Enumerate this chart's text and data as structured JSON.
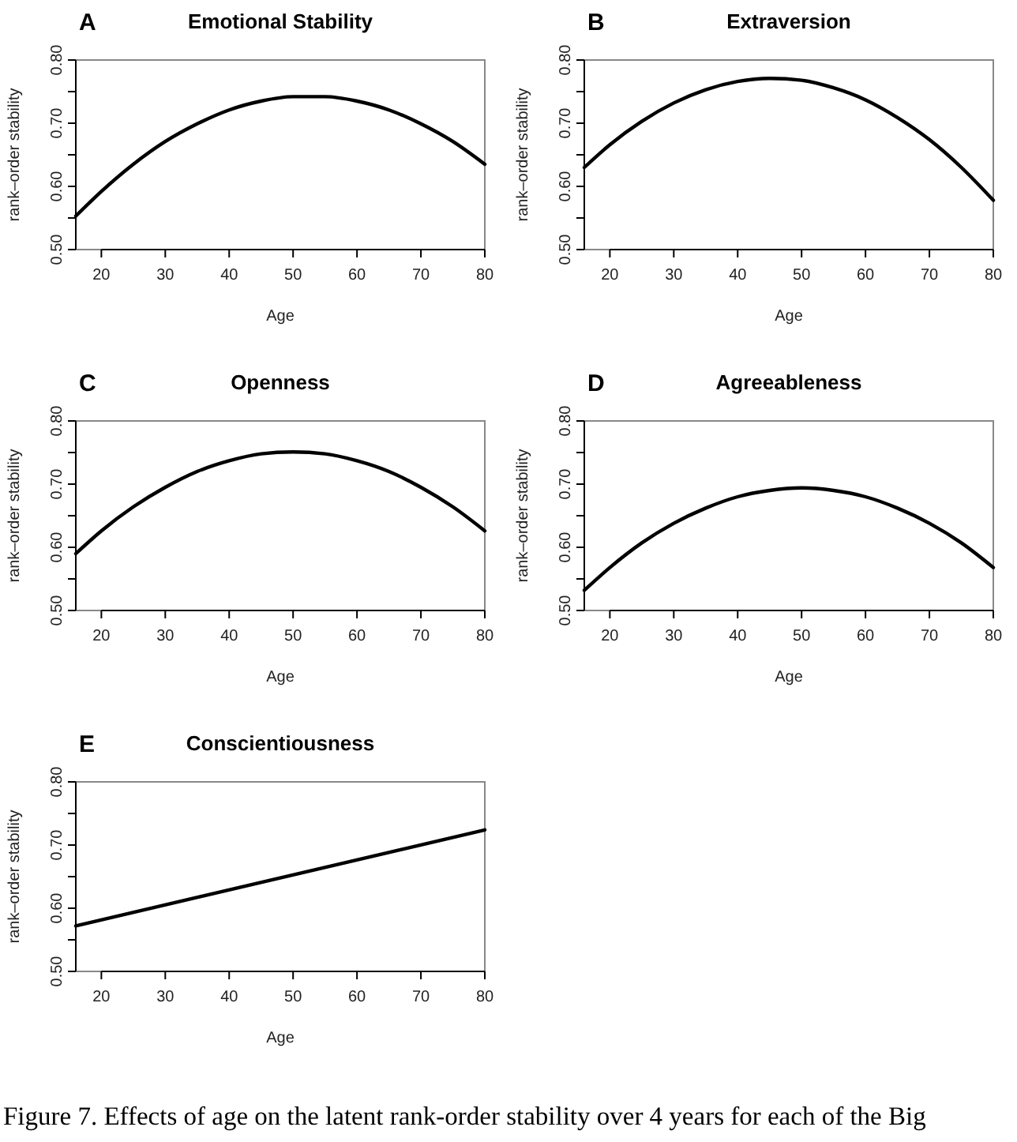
{
  "chart_data": [
    {
      "type": "line",
      "title": "Emotional Stability",
      "xlabel": "Age",
      "ylabel": "rank–order stability",
      "annotations": [
        "A"
      ],
      "x": [
        16,
        20,
        25,
        30,
        35,
        40,
        45,
        50,
        55,
        60,
        65,
        70,
        75,
        80
      ],
      "xlim": [
        16,
        80
      ],
      "xticks": [
        20,
        30,
        40,
        50,
        60,
        70,
        80
      ],
      "ylim": [
        0.5,
        0.8
      ],
      "yticks": [
        {
          "value": 0.5,
          "label": "0.50"
        },
        {
          "value": 0.55,
          "label": null
        },
        {
          "value": 0.6,
          "label": "0.60"
        },
        {
          "value": 0.65,
          "label": null
        },
        {
          "value": 0.7,
          "label": "0.70"
        },
        {
          "value": 0.75,
          "label": null
        },
        {
          "value": 0.8,
          "label": "0.80"
        }
      ],
      "series": [
        {
          "color": "#000000",
          "values": [
            0.553,
            0.592,
            0.635,
            0.671,
            0.699,
            0.721,
            0.735,
            0.742,
            0.742,
            0.735,
            0.721,
            0.699,
            0.671,
            0.635
          ]
        }
      ]
    },
    {
      "type": "line",
      "title": "Extraversion",
      "xlabel": "Age",
      "ylabel": "rank–order stability",
      "annotations": [
        "B"
      ],
      "x": [
        16,
        20,
        25,
        30,
        35,
        40,
        45,
        50,
        55,
        60,
        65,
        70,
        75,
        80
      ],
      "xlim": [
        16,
        80
      ],
      "xticks": [
        20,
        30,
        40,
        50,
        60,
        70,
        80
      ],
      "ylim": [
        0.5,
        0.8
      ],
      "yticks": [
        {
          "value": 0.5,
          "label": "0.50"
        },
        {
          "value": 0.55,
          "label": null
        },
        {
          "value": 0.6,
          "label": "0.60"
        },
        {
          "value": 0.65,
          "label": null
        },
        {
          "value": 0.7,
          "label": "0.70"
        },
        {
          "value": 0.75,
          "label": null
        },
        {
          "value": 0.8,
          "label": "0.80"
        }
      ],
      "series": [
        {
          "color": "#000000",
          "values": [
            0.63,
            0.666,
            0.703,
            0.732,
            0.753,
            0.766,
            0.771,
            0.768,
            0.756,
            0.737,
            0.709,
            0.674,
            0.63,
            0.578
          ]
        }
      ]
    },
    {
      "type": "line",
      "title": "Openness",
      "xlabel": "Age",
      "ylabel": "rank–order stability",
      "annotations": [
        "C"
      ],
      "x": [
        16,
        20,
        25,
        30,
        35,
        40,
        45,
        50,
        55,
        60,
        65,
        70,
        75,
        80
      ],
      "xlim": [
        16,
        80
      ],
      "xticks": [
        20,
        30,
        40,
        50,
        60,
        70,
        80
      ],
      "ylim": [
        0.5,
        0.8
      ],
      "yticks": [
        {
          "value": 0.5,
          "label": "0.50"
        },
        {
          "value": 0.55,
          "label": null
        },
        {
          "value": 0.6,
          "label": "0.60"
        },
        {
          "value": 0.65,
          "label": null
        },
        {
          "value": 0.7,
          "label": "0.70"
        },
        {
          "value": 0.75,
          "label": null
        },
        {
          "value": 0.8,
          "label": "0.80"
        }
      ],
      "series": [
        {
          "color": "#000000",
          "values": [
            0.59,
            0.626,
            0.664,
            0.695,
            0.72,
            0.737,
            0.748,
            0.751,
            0.748,
            0.737,
            0.72,
            0.695,
            0.664,
            0.626
          ]
        }
      ]
    },
    {
      "type": "line",
      "title": "Agreeableness",
      "xlabel": "Age",
      "ylabel": "rank–order stability",
      "annotations": [
        "D"
      ],
      "x": [
        16,
        20,
        25,
        30,
        35,
        40,
        45,
        50,
        55,
        60,
        65,
        70,
        75,
        80
      ],
      "xlim": [
        16,
        80
      ],
      "xticks": [
        20,
        30,
        40,
        50,
        60,
        70,
        80
      ],
      "ylim": [
        0.5,
        0.8
      ],
      "yticks": [
        {
          "value": 0.5,
          "label": "0.50"
        },
        {
          "value": 0.55,
          "label": null
        },
        {
          "value": 0.6,
          "label": "0.60"
        },
        {
          "value": 0.65,
          "label": null
        },
        {
          "value": 0.7,
          "label": "0.70"
        },
        {
          "value": 0.75,
          "label": null
        },
        {
          "value": 0.8,
          "label": "0.80"
        }
      ],
      "series": [
        {
          "color": "#000000",
          "values": [
            0.532,
            0.568,
            0.607,
            0.638,
            0.662,
            0.68,
            0.69,
            0.694,
            0.69,
            0.68,
            0.662,
            0.638,
            0.607,
            0.568
          ]
        }
      ]
    },
    {
      "type": "line",
      "title": "Conscientiousness",
      "xlabel": "Age",
      "ylabel": "rank–order stability",
      "annotations": [
        "E",
        "Figure 7. Effects of age on the latent rank-order stability over 4 years for each of the Big"
      ],
      "x": [
        16,
        80
      ],
      "xlim": [
        16,
        80
      ],
      "xticks": [
        20,
        30,
        40,
        50,
        60,
        70,
        80
      ],
      "ylim": [
        0.5,
        0.8
      ],
      "yticks": [
        {
          "value": 0.5,
          "label": "0.50"
        },
        {
          "value": 0.55,
          "label": null
        },
        {
          "value": 0.6,
          "label": "0.60"
        },
        {
          "value": 0.65,
          "label": null
        },
        {
          "value": 0.7,
          "label": "0.70"
        },
        {
          "value": 0.75,
          "label": null
        },
        {
          "value": 0.8,
          "label": "0.80"
        }
      ],
      "series": [
        {
          "color": "#000000",
          "values": [
            0.572,
            0.724
          ]
        }
      ]
    }
  ]
}
